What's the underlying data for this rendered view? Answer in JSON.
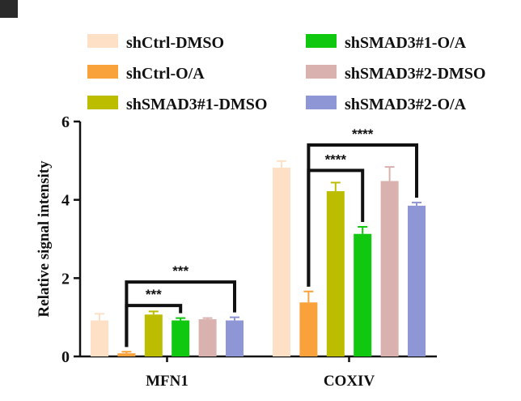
{
  "chart_data": {
    "type": "bar",
    "title": "",
    "xlabel": "",
    "ylabel": "Relative signal intensity",
    "ylim": [
      0,
      6
    ],
    "yticks": [
      0,
      2,
      4,
      6
    ],
    "categories": [
      "MFN1",
      "COXIV"
    ],
    "legend_position": "top",
    "series": [
      {
        "name": "shCtrl-DMSO",
        "color": "#fde0c5",
        "values": [
          0.92,
          4.82
        ],
        "errors": [
          0.17,
          0.17
        ]
      },
      {
        "name": "shCtrl-O/A",
        "color": "#f9a13a",
        "values": [
          0.08,
          1.38
        ],
        "errors": [
          0.04,
          0.28
        ]
      },
      {
        "name": "shSMAD3#1-DMSO",
        "color": "#bcbc00",
        "values": [
          1.07,
          4.22
        ],
        "errors": [
          0.08,
          0.22
        ]
      },
      {
        "name": "shSMAD3#1-O/A",
        "color": "#0fc80f",
        "values": [
          0.92,
          3.13
        ],
        "errors": [
          0.06,
          0.18
        ]
      },
      {
        "name": "shSMAD3#2-DMSO",
        "color": "#d9b1ae",
        "values": [
          0.95,
          4.48
        ],
        "errors": [
          0.03,
          0.36
        ]
      },
      {
        "name": "shSMAD3#2-O/A",
        "color": "#8f96d6",
        "values": [
          0.92,
          3.85
        ],
        "errors": [
          0.08,
          0.08
        ]
      }
    ],
    "annotations": [
      {
        "category": "MFN1",
        "from_series": 1,
        "to_series": 3,
        "text": "***",
        "bracket_y": 1.3
      },
      {
        "category": "MFN1",
        "from_series": 1,
        "to_series": 5,
        "text": "***",
        "bracket_y": 1.9
      },
      {
        "category": "COXIV",
        "from_series": 1,
        "to_series": 3,
        "text": "****",
        "bracket_y": 4.75
      },
      {
        "category": "COXIV",
        "from_series": 1,
        "to_series": 5,
        "text": "****",
        "bracket_y": 5.4
      }
    ]
  }
}
